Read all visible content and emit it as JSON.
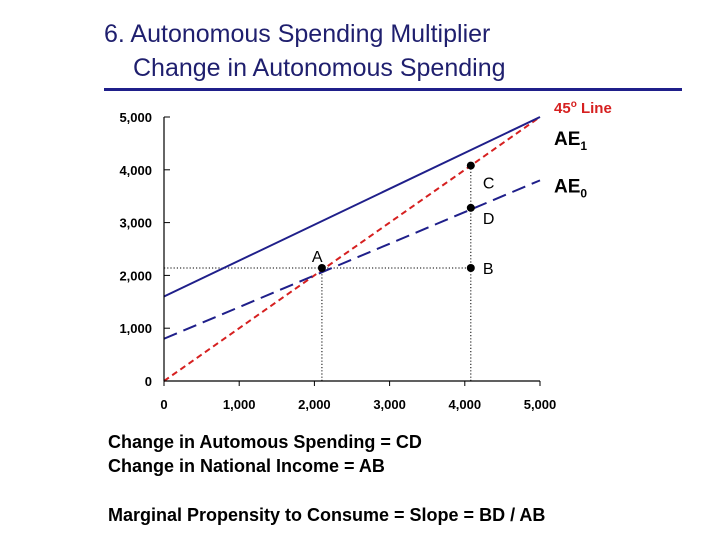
{
  "slide": {
    "title_line1": "6. Autonomous Spending Multiplier",
    "title_line2": "Change in Autonomous Spending",
    "note1": "Change in Automous Spending = CD",
    "note2": "Change in National Income = AB",
    "note3": "Marginal Propensity to Consume = Slope = BD / AB"
  },
  "chart_data": {
    "type": "line",
    "title": "",
    "xlabel": "",
    "ylabel": "",
    "xlim": [
      0,
      5000
    ],
    "ylim": [
      0,
      5000
    ],
    "x_ticks": [
      "0",
      "1,000",
      "2,000",
      "3,000",
      "4,000",
      "5,000"
    ],
    "y_ticks": [
      "0",
      "1,000",
      "2,000",
      "3,000",
      "4,000",
      "5,000"
    ],
    "grid": false,
    "series": [
      {
        "name": "45o Line",
        "style": "dashed",
        "color": "#d62020",
        "points": [
          [
            0,
            0
          ],
          [
            5000,
            5000
          ]
        ]
      },
      {
        "name": "AE1",
        "style": "solid",
        "color": "#1f1f8a",
        "points": [
          [
            0,
            1600
          ],
          [
            5000,
            5000
          ]
        ]
      },
      {
        "name": "AE0",
        "style": "dashed",
        "color": "#1f1f8a",
        "points": [
          [
            0,
            800
          ],
          [
            5000,
            3800
          ]
        ]
      }
    ],
    "series_labels": [
      {
        "series": "45o Line",
        "main": "45",
        "sup": "o",
        "rest": " Line",
        "x": 5000,
        "y": 5000
      },
      {
        "series": "AE1",
        "main": "AE",
        "sub": "1",
        "x": 5000,
        "y": 4580
      },
      {
        "series": "AE0",
        "main": "AE",
        "sub": "0",
        "x": 5000,
        "y": 3680
      }
    ],
    "points": [
      {
        "label": "A",
        "x": 2100,
        "y": 2140
      },
      {
        "label": "C",
        "x": 4080,
        "y": 4080
      },
      {
        "label": "D",
        "x": 4080,
        "y": 3280
      },
      {
        "label": "B",
        "x": 4080,
        "y": 2140
      }
    ],
    "guides": [
      {
        "from": [
          0,
          2140
        ],
        "to": [
          4080,
          2140
        ],
        "style": "dotted"
      },
      {
        "from": [
          2100,
          0
        ],
        "to": [
          2100,
          2140
        ],
        "style": "dotted"
      },
      {
        "from": [
          4080,
          0
        ],
        "to": [
          4080,
          4080
        ],
        "style": "dotted"
      }
    ]
  }
}
